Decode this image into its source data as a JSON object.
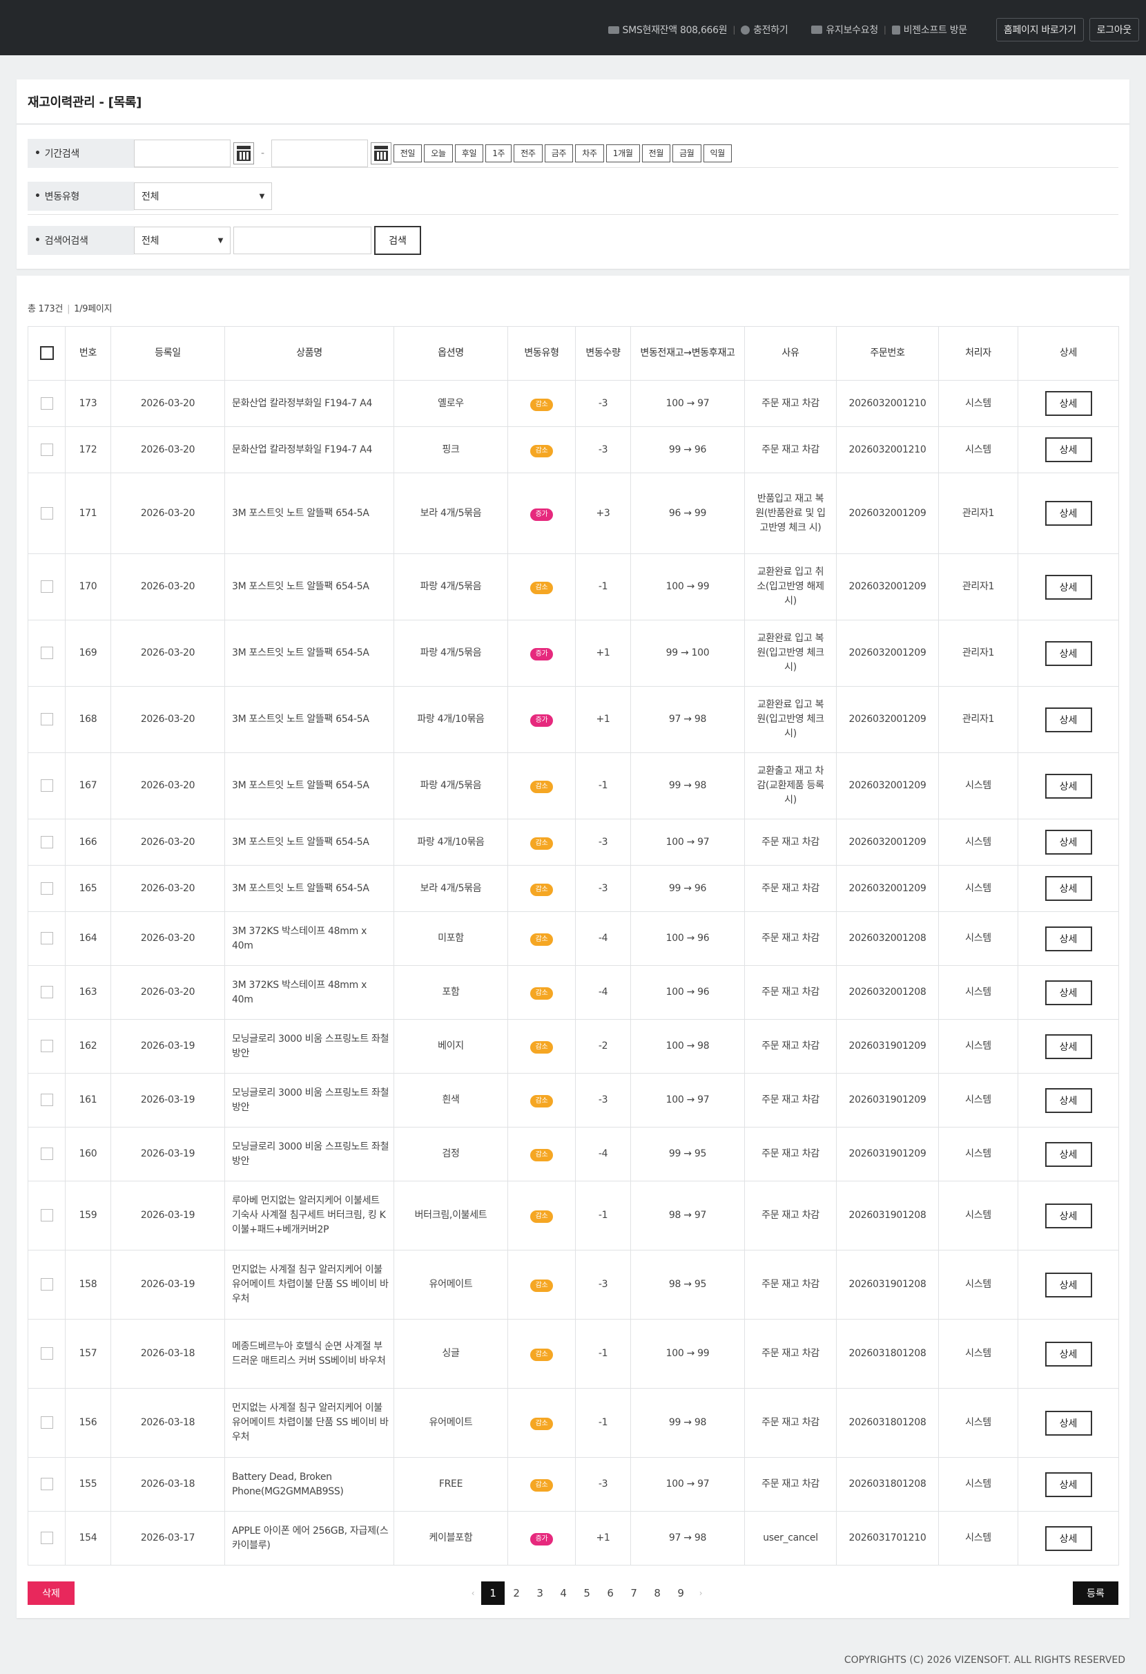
{
  "topbar": {
    "sms_label": "SMS현재잔액 808,666원",
    "charge_label": "충전하기",
    "maintenance_label": "유지보수요청",
    "visit_label": "비젠소프트 방문",
    "homepage_button": "홈페이지 바로가기",
    "logout_button": "로그아웃"
  },
  "search_panel": {
    "title": "재고이력관리 - [목록]",
    "period_label": "기간검색",
    "date_sep": "-",
    "quick_buttons": [
      "전일",
      "오늘",
      "후일",
      "1주",
      "전주",
      "금주",
      "차주",
      "1개월",
      "전월",
      "금월",
      "익월"
    ],
    "change_type_label": "변동유형",
    "change_type_value": "전체",
    "keyword_label": "검색어검색",
    "keyword_field_value": "전체",
    "search_button": "검색"
  },
  "list": {
    "total_text": "총 173건",
    "page_text": "1/9페이지",
    "columns": [
      "번호",
      "등록일",
      "상품명",
      "옵션명",
      "변동유형",
      "변동수량",
      "변동전재고→변동후재고",
      "사유",
      "주문번호",
      "처리자",
      "상세"
    ],
    "rows": [
      {
        "no": "173",
        "date": "2026-03-20",
        "product": "문화산업 칼라정부화일 F194-7 A4",
        "option": "옐로우",
        "type": "감소",
        "qty": "-3",
        "stock": "100 → 97",
        "reason": "주문 재고 차감",
        "order": "2026032001210",
        "handler": "시스템",
        "detail": "상세"
      },
      {
        "no": "172",
        "date": "2026-03-20",
        "product": "문화산업 칼라정부화일 F194-7 A4",
        "option": "핑크",
        "type": "감소",
        "qty": "-3",
        "stock": "99 → 96",
        "reason": "주문 재고 차감",
        "order": "2026032001210",
        "handler": "시스템",
        "detail": "상세"
      },
      {
        "no": "171",
        "date": "2026-03-20",
        "product": "3M 포스트잇 노트 알뜰팩 654-5A",
        "option": "보라 4개/5묶음",
        "type": "증가",
        "qty": "+3",
        "stock": "96 → 99",
        "reason": "반품입고 재고 복원(반품완료 및 입고반영 체크 시)",
        "order": "2026032001209",
        "handler": "관리자1",
        "detail": "상세"
      },
      {
        "no": "170",
        "date": "2026-03-20",
        "product": "3M 포스트잇 노트 알뜰팩 654-5A",
        "option": "파랑 4개/5묶음",
        "type": "감소",
        "qty": "-1",
        "stock": "100 → 99",
        "reason": "교환완료 입고 취소(입고반영 해제 시)",
        "order": "2026032001209",
        "handler": "관리자1",
        "detail": "상세"
      },
      {
        "no": "169",
        "date": "2026-03-20",
        "product": "3M 포스트잇 노트 알뜰팩 654-5A",
        "option": "파랑 4개/5묶음",
        "type": "증가",
        "qty": "+1",
        "stock": "99 → 100",
        "reason": "교환완료 입고 복원(입고반영 체크 시)",
        "order": "2026032001209",
        "handler": "관리자1",
        "detail": "상세"
      },
      {
        "no": "168",
        "date": "2026-03-20",
        "product": "3M 포스트잇 노트 알뜰팩 654-5A",
        "option": "파랑 4개/10묶음",
        "type": "증가",
        "qty": "+1",
        "stock": "97 → 98",
        "reason": "교환완료 입고 복원(입고반영 체크 시)",
        "order": "2026032001209",
        "handler": "관리자1",
        "detail": "상세"
      },
      {
        "no": "167",
        "date": "2026-03-20",
        "product": "3M 포스트잇 노트 알뜰팩 654-5A",
        "option": "파랑 4개/5묶음",
        "type": "감소",
        "qty": "-1",
        "stock": "99 → 98",
        "reason": "교환출고 재고 차감(교환제품 등록 시)",
        "order": "2026032001209",
        "handler": "시스템",
        "detail": "상세"
      },
      {
        "no": "166",
        "date": "2026-03-20",
        "product": "3M 포스트잇 노트 알뜰팩 654-5A",
        "option": "파랑 4개/10묶음",
        "type": "감소",
        "qty": "-3",
        "stock": "100 → 97",
        "reason": "주문 재고 차감",
        "order": "2026032001209",
        "handler": "시스템",
        "detail": "상세"
      },
      {
        "no": "165",
        "date": "2026-03-20",
        "product": "3M 포스트잇 노트 알뜰팩 654-5A",
        "option": "보라 4개/5묶음",
        "type": "감소",
        "qty": "-3",
        "stock": "99 → 96",
        "reason": "주문 재고 차감",
        "order": "2026032001209",
        "handler": "시스템",
        "detail": "상세"
      },
      {
        "no": "164",
        "date": "2026-03-20",
        "product": "3M 372KS 박스테이프 48mm x 40m",
        "option": "미포함",
        "type": "감소",
        "qty": "-4",
        "stock": "100 → 96",
        "reason": "주문 재고 차감",
        "order": "2026032001208",
        "handler": "시스템",
        "detail": "상세"
      },
      {
        "no": "163",
        "date": "2026-03-20",
        "product": "3M 372KS 박스테이프 48mm x 40m",
        "option": "포함",
        "type": "감소",
        "qty": "-4",
        "stock": "100 → 96",
        "reason": "주문 재고 차감",
        "order": "2026032001208",
        "handler": "시스템",
        "detail": "상세"
      },
      {
        "no": "162",
        "date": "2026-03-19",
        "product": "모닝글로리 3000 비움 스프링노트 좌철 방안",
        "option": "베이지",
        "type": "감소",
        "qty": "-2",
        "stock": "100 → 98",
        "reason": "주문 재고 차감",
        "order": "2026031901209",
        "handler": "시스템",
        "detail": "상세"
      },
      {
        "no": "161",
        "date": "2026-03-19",
        "product": "모닝글로리 3000 비움 스프링노트 좌철 방안",
        "option": "흰색",
        "type": "감소",
        "qty": "-3",
        "stock": "100 → 97",
        "reason": "주문 재고 차감",
        "order": "2026031901209",
        "handler": "시스템",
        "detail": "상세"
      },
      {
        "no": "160",
        "date": "2026-03-19",
        "product": "모닝글로리 3000 비움 스프링노트 좌철 방안",
        "option": "검정",
        "type": "감소",
        "qty": "-4",
        "stock": "99 → 95",
        "reason": "주문 재고 차감",
        "order": "2026031901209",
        "handler": "시스템",
        "detail": "상세"
      },
      {
        "no": "159",
        "date": "2026-03-19",
        "product": "루아베 먼지없는 알러지케어 이불세트 기숙사 사계절 침구세트 버터크림, 킹 K 이불+패드+베개커버2P",
        "option": "버터크림,이불세트",
        "type": "감소",
        "qty": "-1",
        "stock": "98 → 97",
        "reason": "주문 재고 차감",
        "order": "2026031901208",
        "handler": "시스템",
        "detail": "상세"
      },
      {
        "no": "158",
        "date": "2026-03-19",
        "product": "먼지없는 사계절 침구 알러지케어 이불 유어메이트 차렵이불 단품 SS 베이비 바우처",
        "option": "유어메이트",
        "type": "감소",
        "qty": "-3",
        "stock": "98 → 95",
        "reason": "주문 재고 차감",
        "order": "2026031901208",
        "handler": "시스템",
        "detail": "상세"
      },
      {
        "no": "157",
        "date": "2026-03-18",
        "product": "메종드베르누아 호텔식 순면 사계절 부드러운 매트리스 커버 SS베이비 바우처",
        "option": "싱글",
        "type": "감소",
        "qty": "-1",
        "stock": "100 → 99",
        "reason": "주문 재고 차감",
        "order": "2026031801208",
        "handler": "시스템",
        "detail": "상세"
      },
      {
        "no": "156",
        "date": "2026-03-18",
        "product": "먼지없는 사계절 침구 알러지케어 이불 유어메이트 차렵이불 단품 SS 베이비 바우처",
        "option": "유어메이트",
        "type": "감소",
        "qty": "-1",
        "stock": "99 → 98",
        "reason": "주문 재고 차감",
        "order": "2026031801208",
        "handler": "시스템",
        "detail": "상세"
      },
      {
        "no": "155",
        "date": "2026-03-18",
        "product": "Battery Dead, Broken Phone(MG2GMMAB9SS)",
        "option": "FREE",
        "type": "감소",
        "qty": "-3",
        "stock": "100 → 97",
        "reason": "주문 재고 차감",
        "order": "2026031801208",
        "handler": "시스템",
        "detail": "상세"
      },
      {
        "no": "154",
        "date": "2026-03-17",
        "product": "APPLE 아이폰 에어 256GB, 자급제(스카이블루)",
        "option": "케이블포함",
        "type": "증가",
        "qty": "+1",
        "stock": "97 → 98",
        "reason": "user_cancel",
        "order": "2026031701210",
        "handler": "시스템",
        "detail": "상세"
      }
    ],
    "delete_button": "삭제",
    "register_button": "등록",
    "pages": [
      "1",
      "2",
      "3",
      "4",
      "5",
      "6",
      "7",
      "8",
      "9"
    ],
    "current_page": "1"
  },
  "footer": {
    "copyright": "COPYRIGHTS (C) 2026 VIZENSOFT. ALL RIGHTS RESERVED"
  },
  "colors": {
    "topbar": "#25282b",
    "decrease_badge": "#f5a623",
    "increase_badge": "#e6297d",
    "delete_button": "#e8285c"
  }
}
